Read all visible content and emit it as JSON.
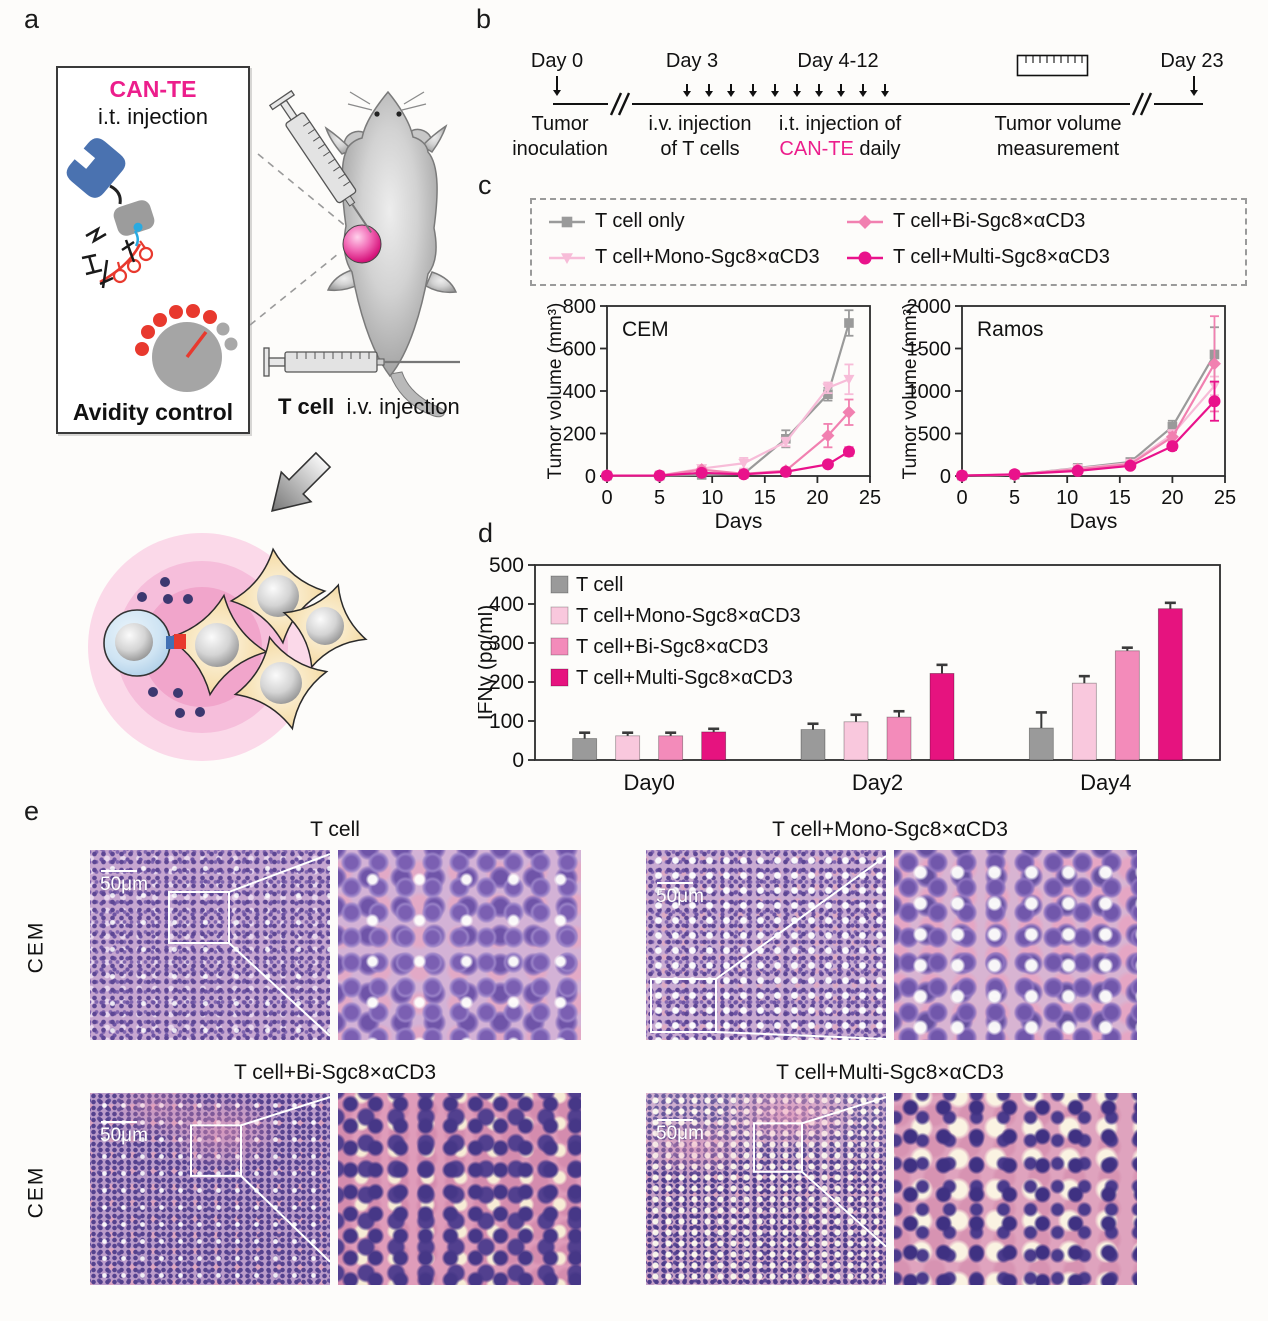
{
  "panels": {
    "a": "a",
    "b": "b",
    "c": "c",
    "d": "d",
    "e": "e"
  },
  "panel_a": {
    "accent_color": "#EC1E8C",
    "box_title": "CAN-TE",
    "box_subtitle": "i.t. injection",
    "box_caption": "Avidity control",
    "tcell_label": "T cell",
    "iv_injection_label": "i.v. injection"
  },
  "panel_b": {
    "day0": "Day 0",
    "day3": "Day 3",
    "day412": "Day 4-12",
    "day23": "Day 23",
    "daily_arrow_count": 10,
    "tumor_inoculation_l1": "Tumor",
    "tumor_inoculation_l2": "inoculation",
    "iv_l1": "i.v. injection",
    "iv_l2": "of T cells",
    "it_l1": "i.t. injection of",
    "it_accent": "CAN-TE",
    "it_suffix": " daily",
    "tv_l1": "Tumor volume",
    "tv_l2": "measurement"
  },
  "chart_data": [
    {
      "id": "cem",
      "type": "line",
      "title": "CEM",
      "xlabel": "Days",
      "ylabel": "Tumor volume (mm³)",
      "xlim": [
        0,
        25
      ],
      "ylim": [
        0,
        800
      ],
      "xticks": [
        0,
        5,
        10,
        15,
        20,
        25
      ],
      "yticks": [
        0,
        200,
        400,
        600,
        800
      ],
      "legend_position": "shared-top-dashed-box",
      "grid": false,
      "series": [
        {
          "name": "T cell only",
          "color": "#9A9A9A",
          "marker": "square",
          "x": [
            0,
            5,
            9,
            13,
            17,
            21,
            23
          ],
          "y": [
            2,
            2,
            5,
            10,
            175,
            385,
            720
          ],
          "err": [
            0,
            0,
            5,
            5,
            40,
            30,
            60
          ]
        },
        {
          "name": "T cell+Mono-Sgc8×αCD3",
          "color": "#F7BCD8",
          "marker": "triangle-down",
          "x": [
            0,
            5,
            9,
            13,
            17,
            21,
            23
          ],
          "y": [
            2,
            2,
            35,
            60,
            160,
            415,
            455
          ],
          "err": [
            0,
            0,
            15,
            25,
            20,
            25,
            70
          ]
        },
        {
          "name": "T cell+Bi-Sgc8×αCD3",
          "color": "#F180B0",
          "marker": "diamond",
          "x": [
            0,
            5,
            9,
            13,
            17,
            21,
            23
          ],
          "y": [
            2,
            2,
            30,
            10,
            25,
            190,
            300
          ],
          "err": [
            0,
            0,
            10,
            5,
            10,
            55,
            60
          ]
        },
        {
          "name": "T cell+Multi-Sgc8×αCD3",
          "color": "#E9128B",
          "marker": "circle",
          "x": [
            0,
            5,
            9,
            13,
            17,
            21,
            23
          ],
          "y": [
            2,
            2,
            15,
            8,
            20,
            55,
            115
          ],
          "err": [
            0,
            0,
            8,
            5,
            8,
            12,
            20
          ]
        }
      ]
    },
    {
      "id": "ramos",
      "type": "line",
      "title": "Ramos",
      "xlabel": "Days",
      "ylabel": "Tumor volume (mm³)",
      "xlim": [
        0,
        25
      ],
      "ylim": [
        0,
        2000
      ],
      "xticks": [
        0,
        5,
        10,
        15,
        20,
        25
      ],
      "yticks": [
        0,
        500,
        1000,
        1500,
        2000
      ],
      "grid": false,
      "series": [
        {
          "name": "T cell only",
          "color": "#9A9A9A",
          "marker": "square",
          "x": [
            0,
            5,
            11,
            16,
            20,
            24
          ],
          "y": [
            5,
            15,
            95,
            165,
            580,
            1430
          ],
          "err": [
            0,
            5,
            15,
            20,
            70,
            320
          ]
        },
        {
          "name": "T cell+Mono-Sgc8×αCD3",
          "color": "#F7BCD8",
          "marker": "triangle-down",
          "x": [
            0,
            5,
            11,
            16,
            20,
            24
          ],
          "y": [
            5,
            15,
            90,
            150,
            490,
            1060
          ],
          "err": [
            0,
            5,
            15,
            20,
            50,
            110
          ]
        },
        {
          "name": "T cell+Bi-Sgc8×αCD3",
          "color": "#F180B0",
          "marker": "diamond",
          "x": [
            0,
            5,
            11,
            16,
            20,
            24
          ],
          "y": [
            5,
            15,
            80,
            140,
            460,
            1320
          ],
          "err": [
            0,
            5,
            15,
            20,
            50,
            560
          ]
        },
        {
          "name": "T cell+Multi-Sgc8×αCD3",
          "color": "#E9128B",
          "marker": "circle",
          "x": [
            0,
            5,
            11,
            16,
            20,
            24
          ],
          "y": [
            5,
            20,
            60,
            120,
            350,
            880
          ],
          "err": [
            0,
            5,
            10,
            15,
            45,
            230
          ]
        }
      ]
    },
    {
      "id": "ifng",
      "type": "bar",
      "title": "",
      "xlabel": "",
      "ylabel": "IFNγ (pg/ml)",
      "ylim": [
        0,
        500
      ],
      "yticks": [
        0,
        100,
        200,
        300,
        400,
        500
      ],
      "categories": [
        "Day0",
        "Day2",
        "Day4"
      ],
      "legend_position": "top-left-inside",
      "grid": false,
      "series": [
        {
          "name": "T cell",
          "color": "#9A9A9A",
          "values": [
            55,
            78,
            82
          ],
          "err": [
            15,
            15,
            40
          ]
        },
        {
          "name": "T cell+Mono-Sgc8×αCD3",
          "color": "#F9C8DD",
          "values": [
            62,
            98,
            197
          ],
          "err": [
            8,
            18,
            18
          ]
        },
        {
          "name": "T cell+Bi-Sgc8×αCD3",
          "color": "#F38BBA",
          "values": [
            62,
            110,
            280
          ],
          "err": [
            8,
            15,
            8
          ]
        },
        {
          "name": "T cell+Multi-Sgc8×αCD3",
          "color": "#E6137F",
          "values": [
            72,
            222,
            388
          ],
          "err": [
            8,
            22,
            15
          ]
        }
      ]
    }
  ],
  "panel_e": {
    "row_label": "CEM",
    "scalebar": "50μm",
    "blocks": [
      {
        "title": "T cell"
      },
      {
        "title": "T cell+Mono-Sgc8×αCD3"
      },
      {
        "title": "T cell+Bi-Sgc8×αCD3"
      },
      {
        "title": "T cell+Multi-Sgc8×αCD3"
      }
    ]
  }
}
